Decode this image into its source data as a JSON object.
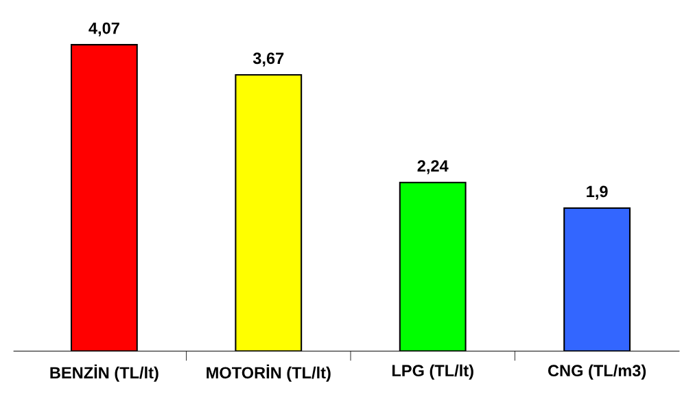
{
  "chart_data": {
    "type": "bar",
    "categories": [
      "BENZİN (TL/lt)",
      "MOTORİN (TL/lt)",
      "LPG (TL/lt)",
      "CNG (TL/m3)"
    ],
    "values": [
      4.07,
      3.67,
      2.24,
      1.9
    ],
    "colors": [
      "#ff0000",
      "#ffff00",
      "#00ff00",
      "#3366ff"
    ],
    "value_labels": [
      "4,07",
      "3,67",
      "2,24",
      "1,9"
    ],
    "grid": false,
    "legend": false
  }
}
